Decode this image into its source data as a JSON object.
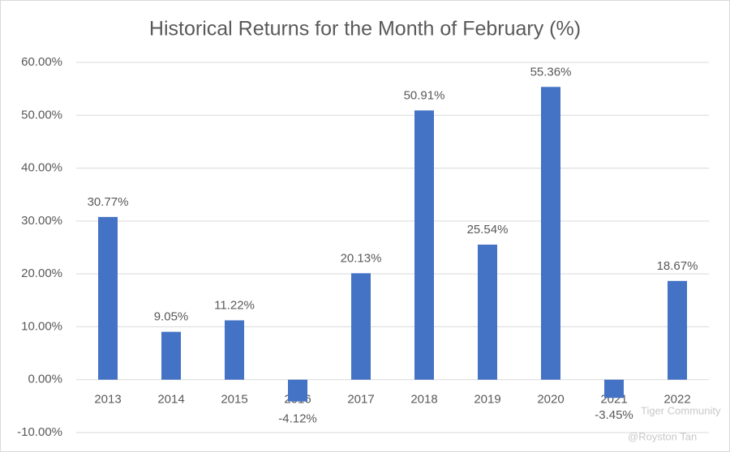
{
  "chart_data": {
    "type": "bar",
    "title": "Historical Returns for the Month of February (%)",
    "categories": [
      "2013",
      "2014",
      "2015",
      "2016",
      "2017",
      "2018",
      "2019",
      "2020",
      "2021",
      "2022"
    ],
    "values": [
      30.77,
      9.05,
      11.22,
      -4.12,
      20.13,
      50.91,
      25.54,
      55.36,
      -3.45,
      18.67
    ],
    "value_labels": [
      "30.77%",
      "9.05%",
      "11.22%",
      "-4.12%",
      "20.13%",
      "50.91%",
      "25.54%",
      "55.36%",
      "-3.45%",
      "18.67%"
    ],
    "color": "#4472c4",
    "ylim": [
      -10,
      60
    ],
    "yticks": [
      {
        "value": -10,
        "label": "-10.00%"
      },
      {
        "value": 0,
        "label": "0.00%"
      },
      {
        "value": 10,
        "label": "10.00%"
      },
      {
        "value": 20,
        "label": "20.00%"
      },
      {
        "value": 30,
        "label": "30.00%"
      },
      {
        "value": 40,
        "label": "40.00%"
      },
      {
        "value": 50,
        "label": "50.00%"
      },
      {
        "value": 60,
        "label": "60.00%"
      }
    ],
    "grid": true,
    "annotations": [
      "Tiger Community",
      "@Royston Tan"
    ]
  }
}
